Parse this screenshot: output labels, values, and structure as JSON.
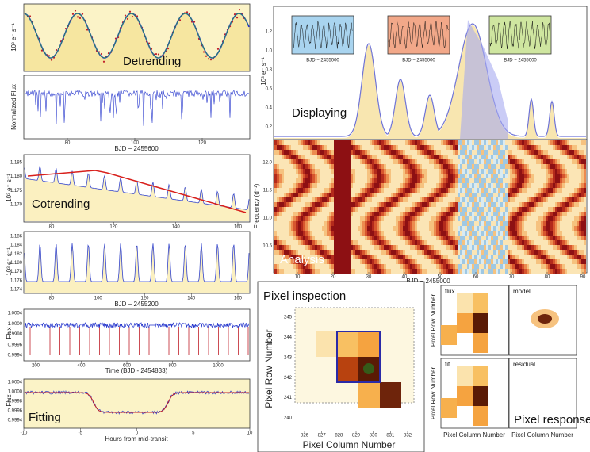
{
  "detrending": {
    "label": "Detrending",
    "top_ylabel": "10³ e⁻ s⁻¹",
    "bottom_ylabel": "Normalized Flux",
    "xlabel": "BJD − 2455600",
    "xticks": [
      80,
      100,
      120
    ]
  },
  "cotrending": {
    "label": "Cotrending",
    "ylabel": "10³ e⁻ s⁻¹",
    "xlabel": "BJD − 2455200",
    "top_yticks": [
      "1.185",
      "1.180",
      "1.175",
      "1.170"
    ],
    "top_xticks": [
      80,
      120,
      140,
      160
    ],
    "bottom_yticks": [
      "1.186",
      "1.184",
      "1.182",
      "1.180",
      "1.178",
      "1.176",
      "1.174"
    ],
    "bottom_xticks": [
      80,
      100,
      120,
      140,
      160
    ]
  },
  "fitting": {
    "label": "Fitting",
    "ylabel": "Flux",
    "top_yticks": [
      "1.0004",
      "1.0000",
      "0.9998",
      "0.9996",
      "0.9994"
    ],
    "top_xticks": [
      200,
      400,
      600,
      800,
      1000
    ],
    "top_xlabel": "Time (BJD - 2454833)",
    "bottom_yticks": [
      "1.0004",
      "1.0000",
      "0.9998",
      "0.9996",
      "0.9994"
    ],
    "bottom_xticks": [
      -10,
      -5,
      0,
      5,
      10
    ],
    "bottom_xlabel": "Hours from mid-transit"
  },
  "displaying": {
    "label": "Displaying",
    "ylabel": "10³ e⁻ s⁻¹",
    "yticks": [
      "0.2",
      "0.4",
      "0.6",
      "0.8",
      "1.0",
      "1.2"
    ],
    "inset_xlabel": "BJD − 2455000"
  },
  "analysis": {
    "label": "Analysis",
    "ylabel": "Frequency (d⁻¹)",
    "yticks": [
      "10.5",
      "11.0",
      "11.5",
      "12.0"
    ],
    "xticks": [
      10,
      20,
      30,
      40,
      50,
      60,
      70,
      80,
      90
    ],
    "xlabel": "BJD − 2455000"
  },
  "pixel_inspection": {
    "label": "Pixel inspection",
    "ylabel": "Pixel Row Number",
    "xlabel": "Pixel Column Number",
    "xticks": [
      826,
      827,
      828,
      829,
      830,
      831,
      832
    ],
    "yticks": [
      240,
      241,
      242,
      243,
      244,
      245
    ]
  },
  "pixel_response": {
    "label": "Pixel response",
    "panels": [
      "flux",
      "model",
      "fit",
      "residual"
    ],
    "ylabel": "Pixel Row Number",
    "xlabel": "Pixel Column Number"
  }
}
